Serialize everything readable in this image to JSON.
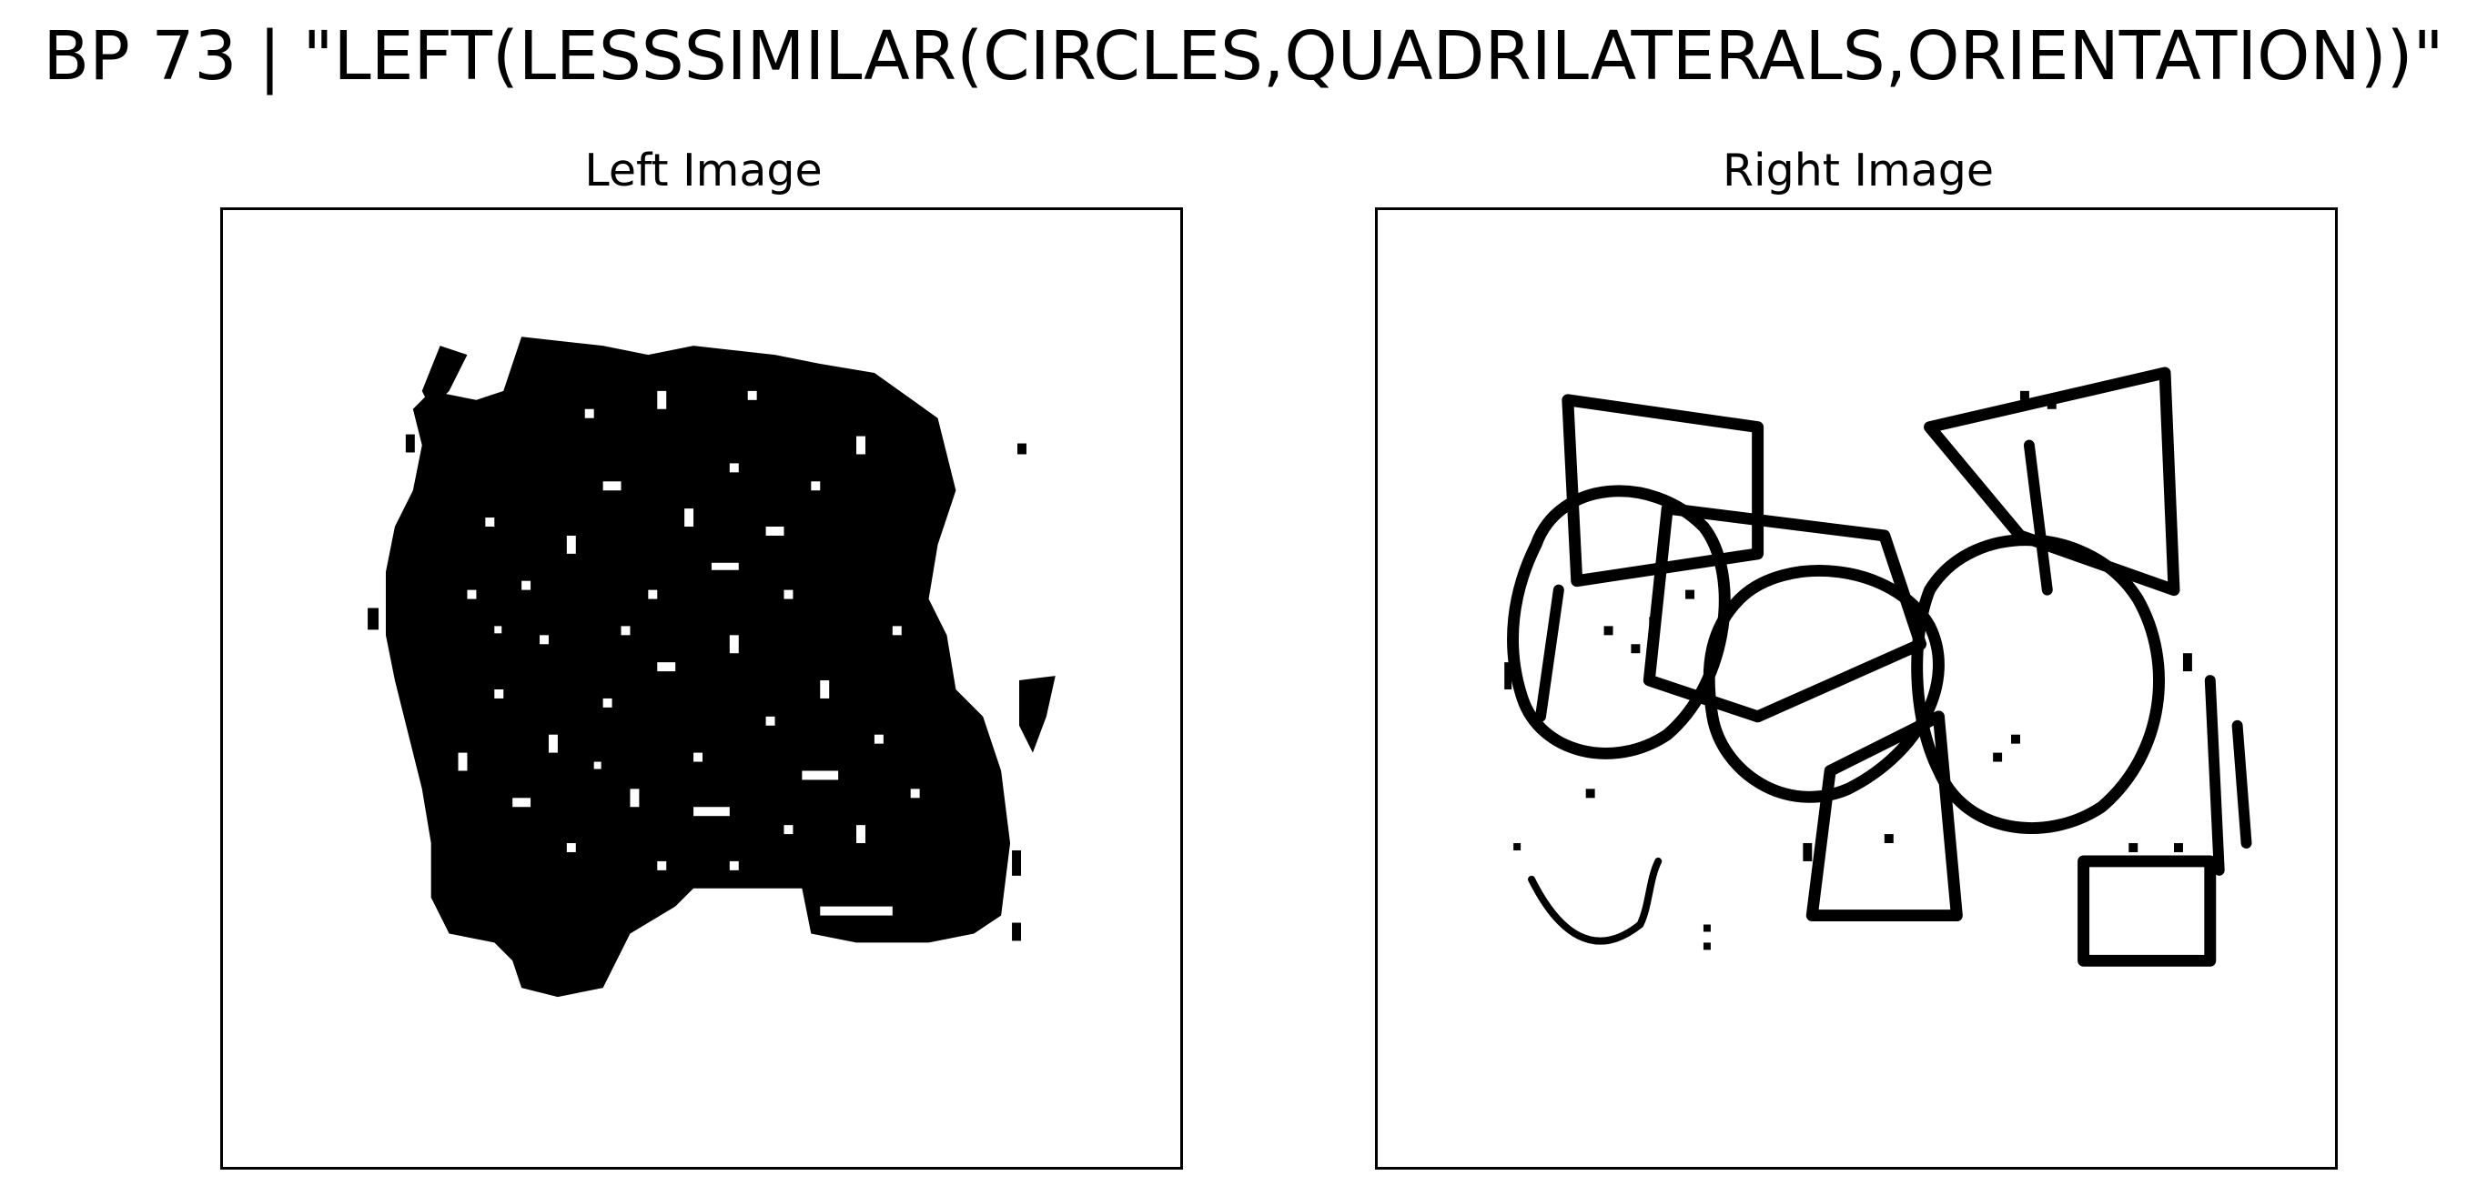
{
  "figure": {
    "title": "BP 73 | \"LEFT(LESSSIMILAR(CIRCLES,QUADRILATERALS,ORIENTATION))\""
  },
  "panels": [
    {
      "title": "Left Image"
    },
    {
      "title": "Right Image"
    }
  ],
  "colors": {
    "ink": "#000000",
    "paper": "#ffffff"
  }
}
